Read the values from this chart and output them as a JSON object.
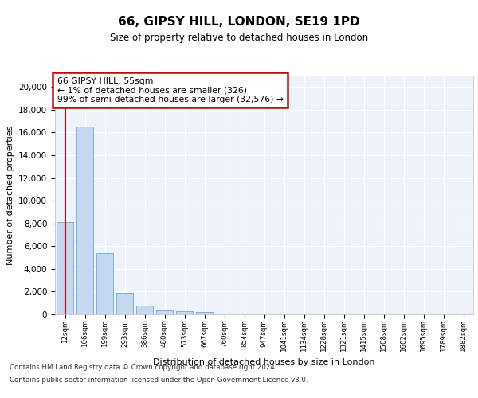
{
  "title1": "66, GIPSY HILL, LONDON, SE19 1PD",
  "title2": "Size of property relative to detached houses in London",
  "xlabel": "Distribution of detached houses by size in London",
  "ylabel": "Number of detached properties",
  "bar_labels": [
    "12sqm",
    "106sqm",
    "199sqm",
    "293sqm",
    "386sqm",
    "480sqm",
    "573sqm",
    "667sqm",
    "760sqm",
    "854sqm",
    "947sqm",
    "1041sqm",
    "1134sqm",
    "1228sqm",
    "1321sqm",
    "1415sqm",
    "1508sqm",
    "1602sqm",
    "1695sqm",
    "1789sqm",
    "1882sqm"
  ],
  "bar_values": [
    8100,
    16500,
    5400,
    1900,
    800,
    350,
    250,
    200,
    0,
    0,
    0,
    0,
    0,
    0,
    0,
    0,
    0,
    0,
    0,
    0,
    0
  ],
  "bar_color": "#c5d8f0",
  "bar_edgecolor": "#6fa8d0",
  "red_line_color": "#cc0000",
  "annotation_text": "66 GIPSY HILL: 55sqm\n← 1% of detached houses are smaller (326)\n99% of semi-detached houses are larger (32,576) →",
  "annotation_box_color": "#cc0000",
  "ylim": [
    0,
    21000
  ],
  "yticks": [
    0,
    2000,
    4000,
    6000,
    8000,
    10000,
    12000,
    14000,
    16000,
    18000,
    20000
  ],
  "background_color": "#eef2fb",
  "grid_color": "#ffffff",
  "footer_line1": "Contains HM Land Registry data © Crown copyright and database right 2024.",
  "footer_line2": "Contains public sector information licensed under the Open Government Licence v3.0."
}
